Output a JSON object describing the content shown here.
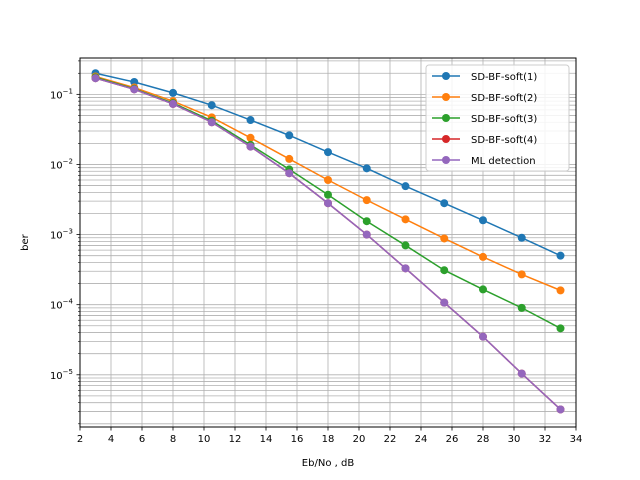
{
  "chart_data": {
    "type": "line",
    "xlabel": "Eb/No , dB",
    "ylabel": "ber",
    "x_scale": "linear",
    "y_scale": "log",
    "xlim": [
      2,
      34
    ],
    "ylim": [
      1.8e-06,
      0.33
    ],
    "x_ticks": [
      2,
      4,
      6,
      8,
      10,
      12,
      14,
      16,
      18,
      20,
      22,
      24,
      26,
      28,
      30,
      32,
      34
    ],
    "y_ticks": [
      {
        "value": 0.1,
        "base": "10",
        "exp": "−1"
      },
      {
        "value": 0.01,
        "base": "10",
        "exp": "−2"
      },
      {
        "value": 0.001,
        "base": "10",
        "exp": "−3"
      },
      {
        "value": 0.0001,
        "base": "10",
        "exp": "−4"
      },
      {
        "value": 1e-05,
        "base": "10",
        "exp": "−5"
      }
    ],
    "grid": true,
    "grid_minor": true,
    "legend_position": "top-right",
    "x": [
      3,
      5.5,
      8,
      10.5,
      13,
      15.5,
      18,
      20.5,
      23,
      25.5,
      28,
      30.5,
      33
    ],
    "series": [
      {
        "name": "SD-BF-soft(1)",
        "color": "#1f77b4",
        "values": [
          0.2,
          0.15,
          0.105,
          0.07,
          0.043,
          0.026,
          0.015,
          0.0088,
          0.0049,
          0.0028,
          0.0016,
          0.0009,
          0.0005
        ]
      },
      {
        "name": "SD-BF-soft(2)",
        "color": "#ff7f0e",
        "values": [
          0.18,
          0.125,
          0.08,
          0.047,
          0.024,
          0.012,
          0.006,
          0.0031,
          0.00165,
          0.00088,
          0.00048,
          0.00027,
          0.00016
        ]
      },
      {
        "name": "SD-BF-soft(3)",
        "color": "#2ca02c",
        "values": [
          0.175,
          0.12,
          0.075,
          0.042,
          0.019,
          0.0085,
          0.0037,
          0.00155,
          0.0007,
          0.00031,
          0.000165,
          9e-05,
          4.6e-05
        ]
      },
      {
        "name": "SD-BF-soft(4)",
        "color": "#d62728",
        "values": [
          0.17,
          0.118,
          0.073,
          0.04,
          0.018,
          0.0075,
          0.0028,
          0.001,
          0.00033,
          0.000107,
          3.5e-05,
          1.04e-05,
          3.2e-06
        ]
      },
      {
        "name": "ML detection",
        "color": "#9467bd",
        "values": [
          0.17,
          0.118,
          0.073,
          0.04,
          0.018,
          0.0075,
          0.0028,
          0.001,
          0.00033,
          0.000107,
          3.5e-05,
          1.04e-05,
          3.2e-06
        ]
      }
    ]
  }
}
